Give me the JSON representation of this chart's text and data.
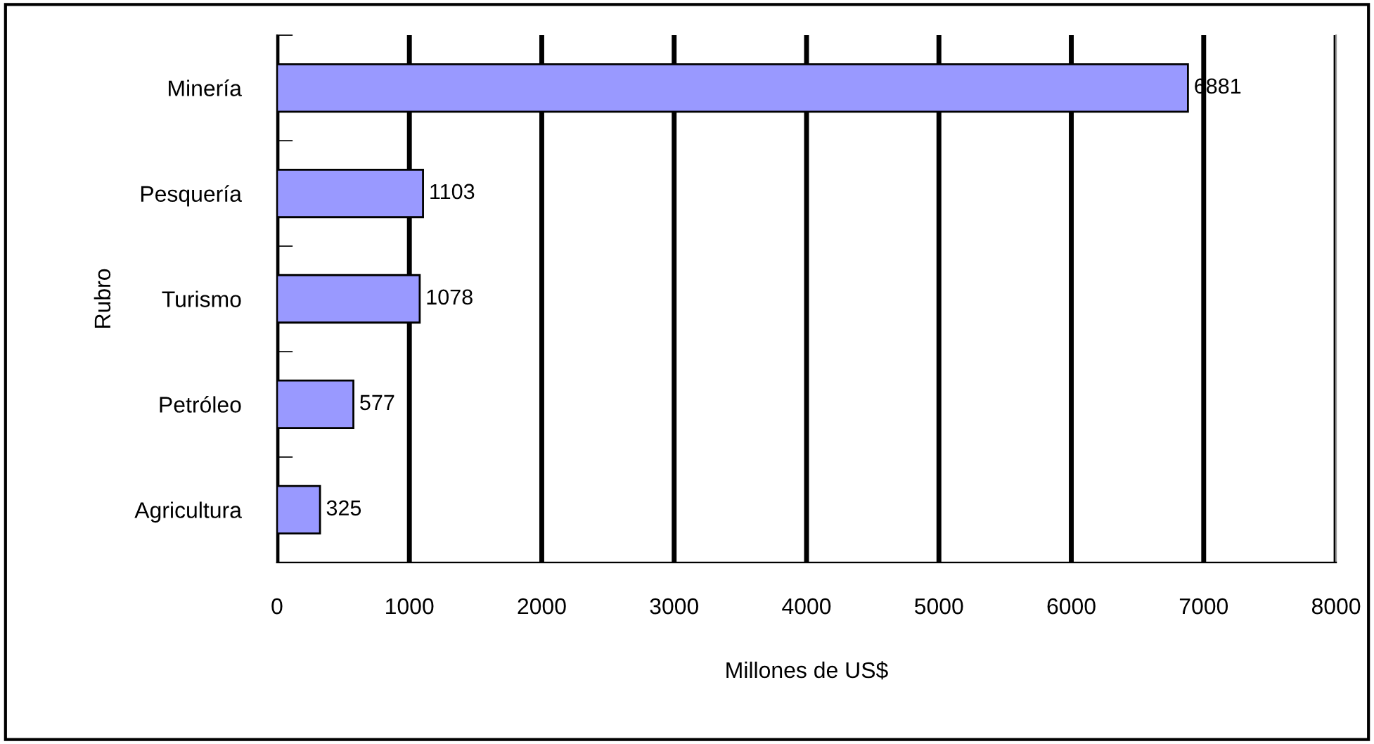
{
  "chart_data": {
    "type": "bar",
    "orientation": "horizontal",
    "xlabel": "Millones de US$",
    "ylabel": "Rubro",
    "categories": [
      "Minería",
      "Pesquería",
      "Turismo",
      "Petróleo",
      "Agricultura"
    ],
    "values": [
      6881,
      1103,
      1078,
      577,
      325
    ],
    "color": "#9999ff",
    "xlim": [
      0,
      8000
    ],
    "xticks": [
      0,
      1000,
      2000,
      3000,
      4000,
      5000,
      6000,
      7000,
      8000
    ],
    "grid": "x",
    "data_labels": true
  }
}
